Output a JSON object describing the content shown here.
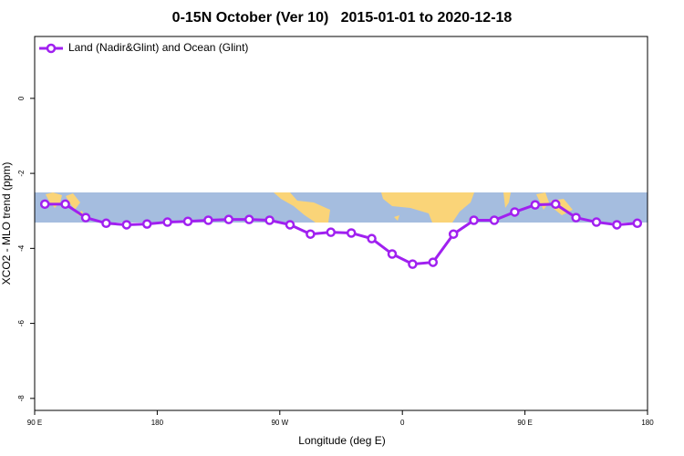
{
  "chart_data": {
    "type": "line",
    "title": "0-15N October (Ver 10)   2015-01-01 to 2020-12-18",
    "xlabel": "Longitude (deg E)",
    "ylabel": "XCO2 - MLO trend (ppm)",
    "xlim": [
      90,
      540
    ],
    "xticks": [
      {
        "value": 90,
        "label": "90 E"
      },
      {
        "value": 180,
        "label": "180"
      },
      {
        "value": 270,
        "label": "90 W"
      },
      {
        "value": 360,
        "label": "0"
      },
      {
        "value": 450,
        "label": "90 E"
      },
      {
        "value": 540,
        "label": "180"
      }
    ],
    "ylim": [
      -8.32,
      1.65
    ],
    "yticks": [
      0,
      -2,
      -4,
      -6,
      -8
    ],
    "legend": "top-left",
    "series": [
      {
        "name": "Land (Nadir&Glint) and Ocean (Glint)",
        "color": "#a020f0",
        "x": [
          97.5,
          112.5,
          127.5,
          142.5,
          157.5,
          172.5,
          187.5,
          202.5,
          217.5,
          232.5,
          247.5,
          262.5,
          277.5,
          292.5,
          307.5,
          322.5,
          337.5,
          352.5,
          367.5,
          382.5,
          397.5,
          412.5,
          427.5,
          442.5,
          457.5,
          472.5,
          487.5,
          502.5,
          517.5,
          532.5
        ],
        "values": [
          -2.82,
          -2.82,
          -3.18,
          -3.33,
          -3.37,
          -3.35,
          -3.3,
          -3.28,
          -3.25,
          -3.23,
          -3.23,
          -3.25,
          -3.37,
          -3.62,
          -3.57,
          -3.59,
          -3.74,
          -4.15,
          -4.42,
          -4.37,
          -3.62,
          -3.25,
          -3.25,
          -3.03,
          -2.84,
          -2.82,
          -3.18,
          -3.3,
          -3.37,
          -3.33
        ]
      }
    ]
  }
}
